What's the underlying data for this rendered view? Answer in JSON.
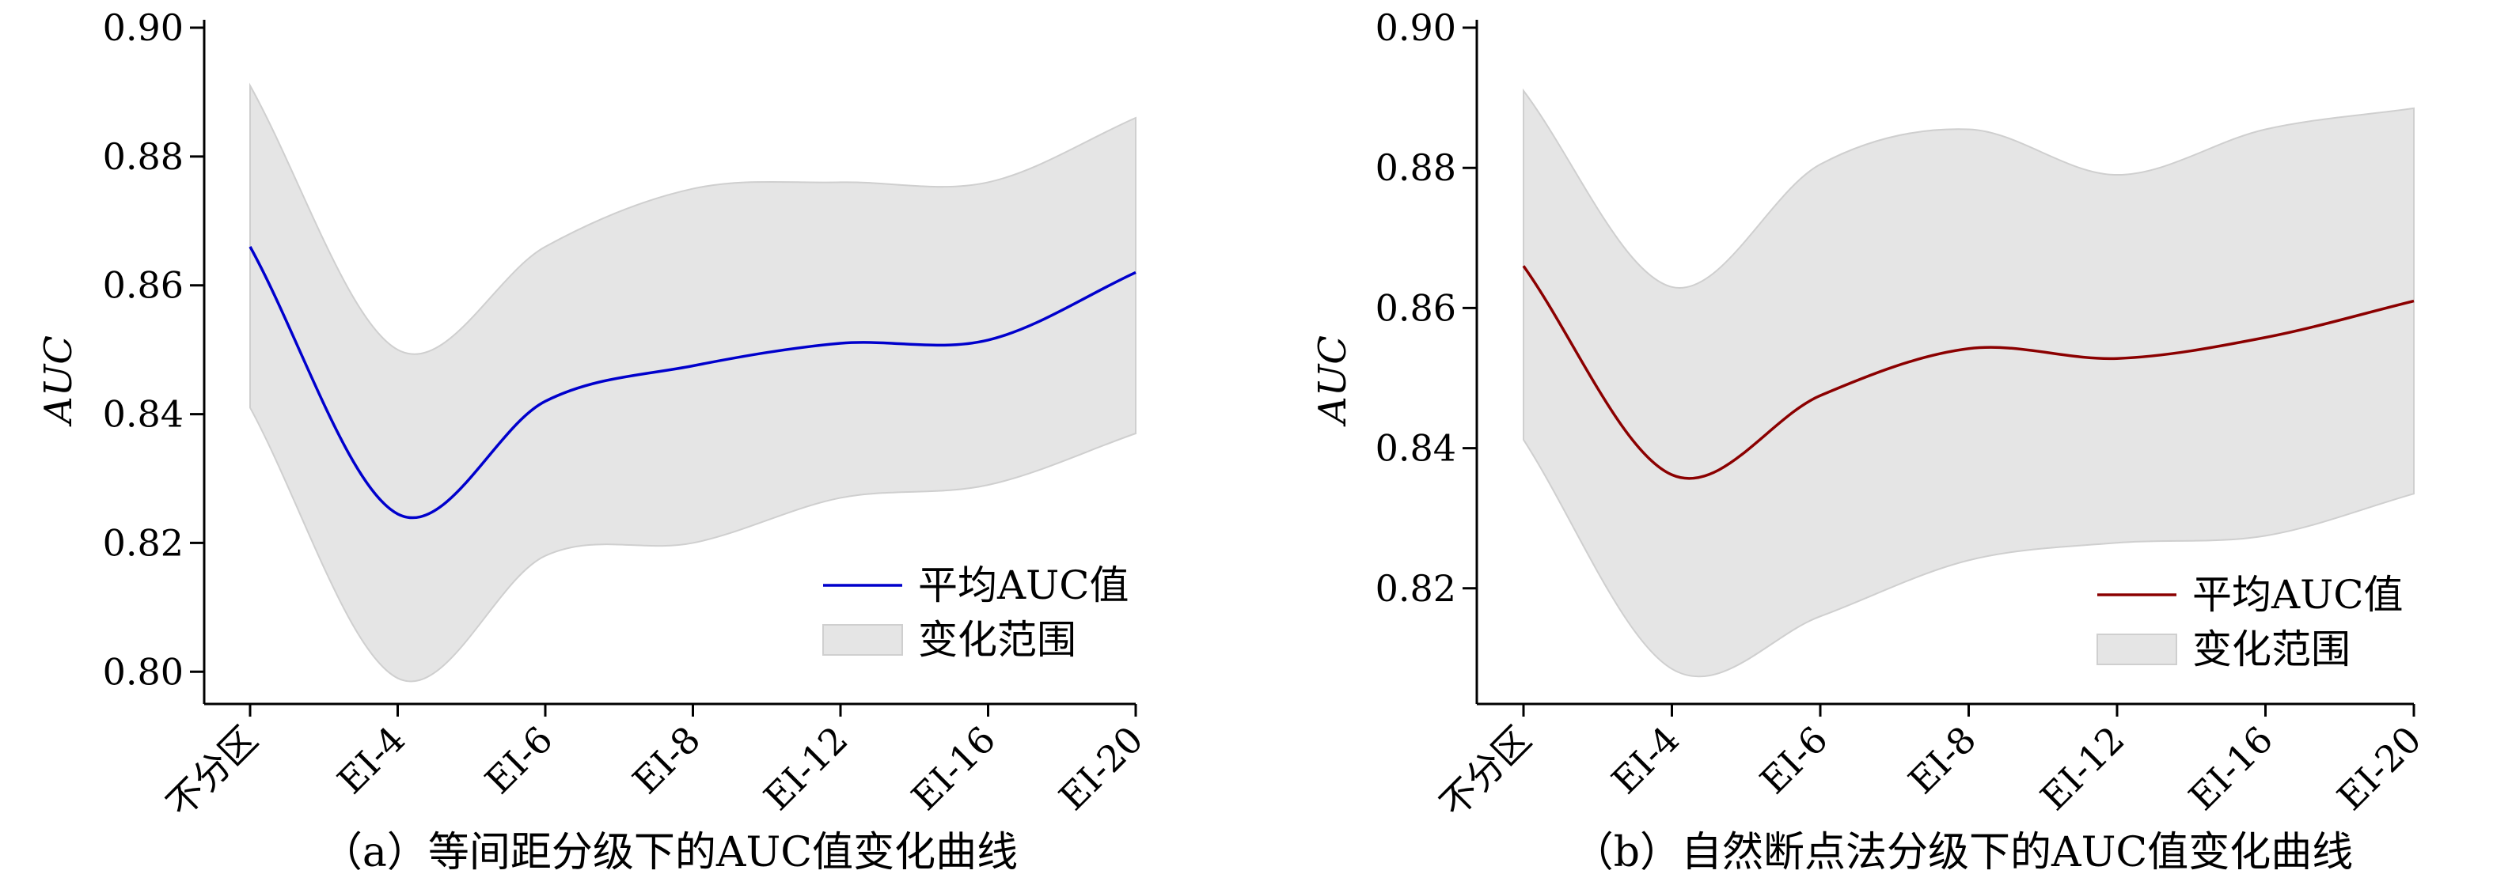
{
  "chart_data": [
    {
      "type": "line",
      "title": "（a）等间距分级下的AUC值变化曲线",
      "xlabel": "",
      "ylabel": "AUC",
      "categories": [
        "不分区",
        "EI-4",
        "EI-6",
        "EI-8",
        "EI-12",
        "EI-16",
        "EI-20"
      ],
      "ylim": [
        0.795,
        0.9
      ],
      "yticks": [
        "0.80",
        "0.82",
        "0.84",
        "0.86",
        "0.88",
        "0.90"
      ],
      "series": [
        {
          "name": "平均AUC值",
          "type": "line",
          "color": "#0000cc",
          "values": [
            0.866,
            0.8245,
            0.842,
            0.8475,
            0.851,
            0.8515,
            0.862
          ]
        },
        {
          "name": "变化范围",
          "type": "band",
          "color": "#e5e5e5",
          "lower": [
            0.841,
            0.799,
            0.818,
            0.82,
            0.827,
            0.829,
            0.837
          ],
          "upper": [
            0.891,
            0.85,
            0.866,
            0.875,
            0.876,
            0.876,
            0.886
          ]
        }
      ],
      "legend": {
        "position": "lower-right",
        "line_label": "平均AUC值",
        "band_label": "变化范围"
      }
    },
    {
      "type": "line",
      "title": "（b）自然断点法分级下的AUC值变化曲线",
      "xlabel": "",
      "ylabel": "AUC",
      "categories": [
        "不分区",
        "EI-4",
        "EI-6",
        "EI-8",
        "EI-12",
        "EI-16",
        "EI-20"
      ],
      "ylim": [
        0.8035,
        0.9
      ],
      "yticks": [
        "0.82",
        "0.84",
        "0.86",
        "0.88",
        "0.90"
      ],
      "series": [
        {
          "name": "平均AUC值",
          "type": "line",
          "color": "#8b0000",
          "values": [
            0.866,
            0.8362,
            0.8475,
            0.8542,
            0.8528,
            0.8558,
            0.861
          ]
        },
        {
          "name": "变化范围",
          "type": "band",
          "color": "#e5e5e5",
          "lower": [
            0.8412,
            0.8085,
            0.816,
            0.824,
            0.8265,
            0.8275,
            0.8335
          ],
          "upper": [
            0.891,
            0.863,
            0.8805,
            0.8855,
            0.879,
            0.8855,
            0.8885
          ]
        }
      ],
      "legend": {
        "position": "lower-right",
        "line_label": "平均AUC值",
        "band_label": "变化范围"
      }
    }
  ]
}
